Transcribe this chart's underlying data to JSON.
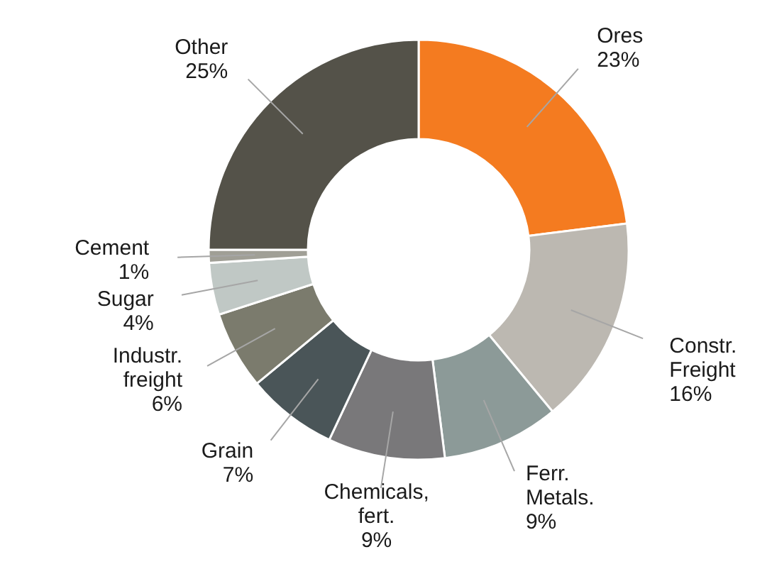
{
  "chart_data": {
    "type": "donut",
    "categories": [
      "Ores",
      "Constr. Freight",
      "Ferr. Metals.",
      "Chemicals, fert.",
      "Grain",
      "Industr. freight",
      "Sugar",
      "Cement",
      "Other"
    ],
    "values": [
      23,
      16,
      9,
      9,
      7,
      6,
      4,
      1,
      25
    ],
    "colors": [
      "#f47b20",
      "#bcb8b1",
      "#8c9a98",
      "#79787a",
      "#4a5558",
      "#7b7b6d",
      "#c0c8c5",
      "#a09f96",
      "#545249"
    ],
    "value_labels": [
      "23%",
      "16%",
      "9%",
      "9%",
      "7%",
      "6%",
      "4%",
      "1%",
      "25%"
    ]
  }
}
